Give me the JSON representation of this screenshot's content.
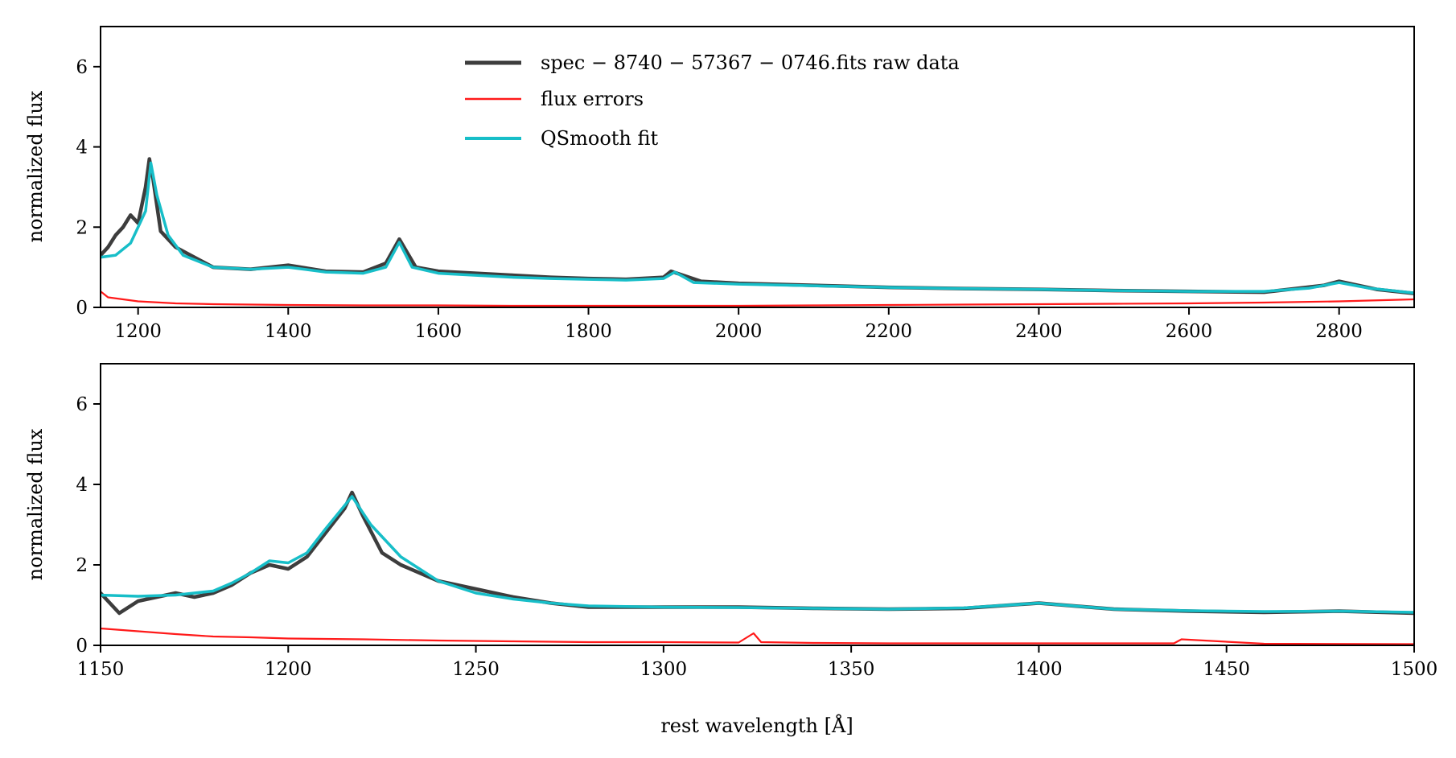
{
  "colors": {
    "raw": "#3d3d3d",
    "errors": "#ff1a1a",
    "fit": "#17bec8",
    "axis": "#000000",
    "background": "#ffffff"
  },
  "chart_data": [
    {
      "id": "top",
      "type": "line",
      "xlim": [
        1150,
        2900
      ],
      "ylim": [
        0,
        7
      ],
      "xticks": [
        1200,
        1400,
        1600,
        1800,
        2000,
        2200,
        2400,
        2600,
        2800
      ],
      "yticks": [
        0,
        2,
        4,
        6
      ],
      "xlabel": "",
      "ylabel": "normalized flux",
      "legend": {
        "placement": "upper-center",
        "entries": [
          {
            "key": "raw",
            "label": "spec − 8740 − 57367 − 0746.fits raw data"
          },
          {
            "key": "errors",
            "label": "flux errors"
          },
          {
            "key": "fit",
            "label": "QSmooth fit"
          }
        ]
      },
      "series": [
        {
          "name": "spec − 8740 − 57367 − 0746.fits raw data",
          "key": "raw",
          "x": [
            1150,
            1160,
            1170,
            1180,
            1190,
            1200,
            1210,
            1215,
            1220,
            1230,
            1250,
            1280,
            1300,
            1350,
            1400,
            1450,
            1500,
            1530,
            1548,
            1570,
            1600,
            1650,
            1700,
            1750,
            1800,
            1850,
            1900,
            1910,
            1950,
            2000,
            2100,
            2200,
            2300,
            2400,
            2500,
            2600,
            2700,
            2780,
            2800,
            2850,
            2900
          ],
          "y": [
            1.3,
            1.5,
            1.8,
            2.0,
            2.3,
            2.1,
            3.0,
            3.7,
            3.2,
            1.9,
            1.5,
            1.2,
            1.0,
            0.95,
            1.05,
            0.9,
            0.88,
            1.1,
            1.7,
            1.0,
            0.9,
            0.85,
            0.8,
            0.75,
            0.72,
            0.7,
            0.75,
            0.9,
            0.65,
            0.6,
            0.55,
            0.5,
            0.47,
            0.45,
            0.42,
            0.4,
            0.38,
            0.55,
            0.65,
            0.45,
            0.35
          ]
        },
        {
          "name": "flux errors",
          "key": "errors",
          "x": [
            1150,
            1160,
            1200,
            1250,
            1300,
            1400,
            1500,
            1600,
            1700,
            1800,
            1900,
            2000,
            2100,
            2200,
            2300,
            2400,
            2500,
            2600,
            2700,
            2800,
            2900
          ],
          "y": [
            0.4,
            0.25,
            0.15,
            0.1,
            0.08,
            0.06,
            0.05,
            0.05,
            0.04,
            0.04,
            0.04,
            0.04,
            0.05,
            0.06,
            0.07,
            0.08,
            0.09,
            0.1,
            0.12,
            0.15,
            0.2
          ]
        },
        {
          "name": "QSmooth fit",
          "key": "fit",
          "x": [
            1150,
            1170,
            1190,
            1200,
            1210,
            1217,
            1225,
            1240,
            1260,
            1300,
            1350,
            1400,
            1450,
            1500,
            1530,
            1548,
            1565,
            1600,
            1650,
            1700,
            1750,
            1800,
            1850,
            1900,
            1915,
            1940,
            2000,
            2100,
            2200,
            2300,
            2400,
            2500,
            2600,
            2700,
            2760,
            2800,
            2840,
            2900
          ],
          "y": [
            1.25,
            1.3,
            1.6,
            2.0,
            2.4,
            3.6,
            2.8,
            1.8,
            1.3,
            1.0,
            0.95,
            1.0,
            0.88,
            0.85,
            1.0,
            1.62,
            1.0,
            0.85,
            0.8,
            0.75,
            0.72,
            0.7,
            0.68,
            0.72,
            0.88,
            0.62,
            0.58,
            0.54,
            0.5,
            0.47,
            0.45,
            0.42,
            0.4,
            0.4,
            0.48,
            0.62,
            0.48,
            0.36
          ]
        }
      ]
    },
    {
      "id": "bottom",
      "type": "line",
      "xlim": [
        1150,
        1500
      ],
      "ylim": [
        0,
        7
      ],
      "xticks": [
        1150,
        1200,
        1250,
        1300,
        1350,
        1400,
        1450,
        1500
      ],
      "yticks": [
        0,
        2,
        4,
        6
      ],
      "xlabel": "rest wavelength [Å]",
      "ylabel": "normalized flux",
      "series": [
        {
          "name": "spec − 8740 − 57367 − 0746.fits raw data",
          "key": "raw",
          "x": [
            1150,
            1155,
            1160,
            1165,
            1170,
            1175,
            1180,
            1185,
            1190,
            1195,
            1200,
            1205,
            1210,
            1215,
            1217,
            1220,
            1225,
            1230,
            1240,
            1250,
            1260,
            1270,
            1280,
            1300,
            1320,
            1340,
            1360,
            1380,
            1400,
            1420,
            1440,
            1460,
            1480,
            1500
          ],
          "y": [
            1.3,
            0.8,
            1.1,
            1.2,
            1.3,
            1.2,
            1.3,
            1.5,
            1.8,
            2.0,
            1.9,
            2.2,
            2.8,
            3.4,
            3.8,
            3.2,
            2.3,
            2.0,
            1.6,
            1.4,
            1.2,
            1.05,
            0.95,
            0.95,
            0.95,
            0.92,
            0.9,
            0.92,
            1.05,
            0.9,
            0.85,
            0.82,
            0.85,
            0.8
          ]
        },
        {
          "name": "flux errors",
          "key": "errors",
          "x": [
            1150,
            1160,
            1170,
            1180,
            1190,
            1200,
            1220,
            1240,
            1260,
            1280,
            1300,
            1320,
            1324,
            1326,
            1340,
            1360,
            1400,
            1436,
            1438,
            1460,
            1500
          ],
          "y": [
            0.42,
            0.35,
            0.28,
            0.22,
            0.2,
            0.17,
            0.15,
            0.12,
            0.1,
            0.08,
            0.08,
            0.07,
            0.3,
            0.08,
            0.06,
            0.05,
            0.05,
            0.05,
            0.15,
            0.04,
            0.03
          ]
        },
        {
          "name": "QSmooth fit",
          "key": "fit",
          "x": [
            1150,
            1160,
            1170,
            1180,
            1185,
            1190,
            1195,
            1200,
            1205,
            1210,
            1217,
            1222,
            1230,
            1240,
            1250,
            1260,
            1270,
            1280,
            1300,
            1320,
            1340,
            1360,
            1380,
            1400,
            1420,
            1440,
            1460,
            1480,
            1500
          ],
          "y": [
            1.25,
            1.22,
            1.25,
            1.35,
            1.55,
            1.8,
            2.1,
            2.05,
            2.3,
            2.9,
            3.7,
            3.0,
            2.2,
            1.6,
            1.3,
            1.15,
            1.05,
            0.98,
            0.95,
            0.94,
            0.92,
            0.9,
            0.93,
            1.05,
            0.9,
            0.86,
            0.84,
            0.85,
            0.82
          ]
        }
      ]
    }
  ]
}
